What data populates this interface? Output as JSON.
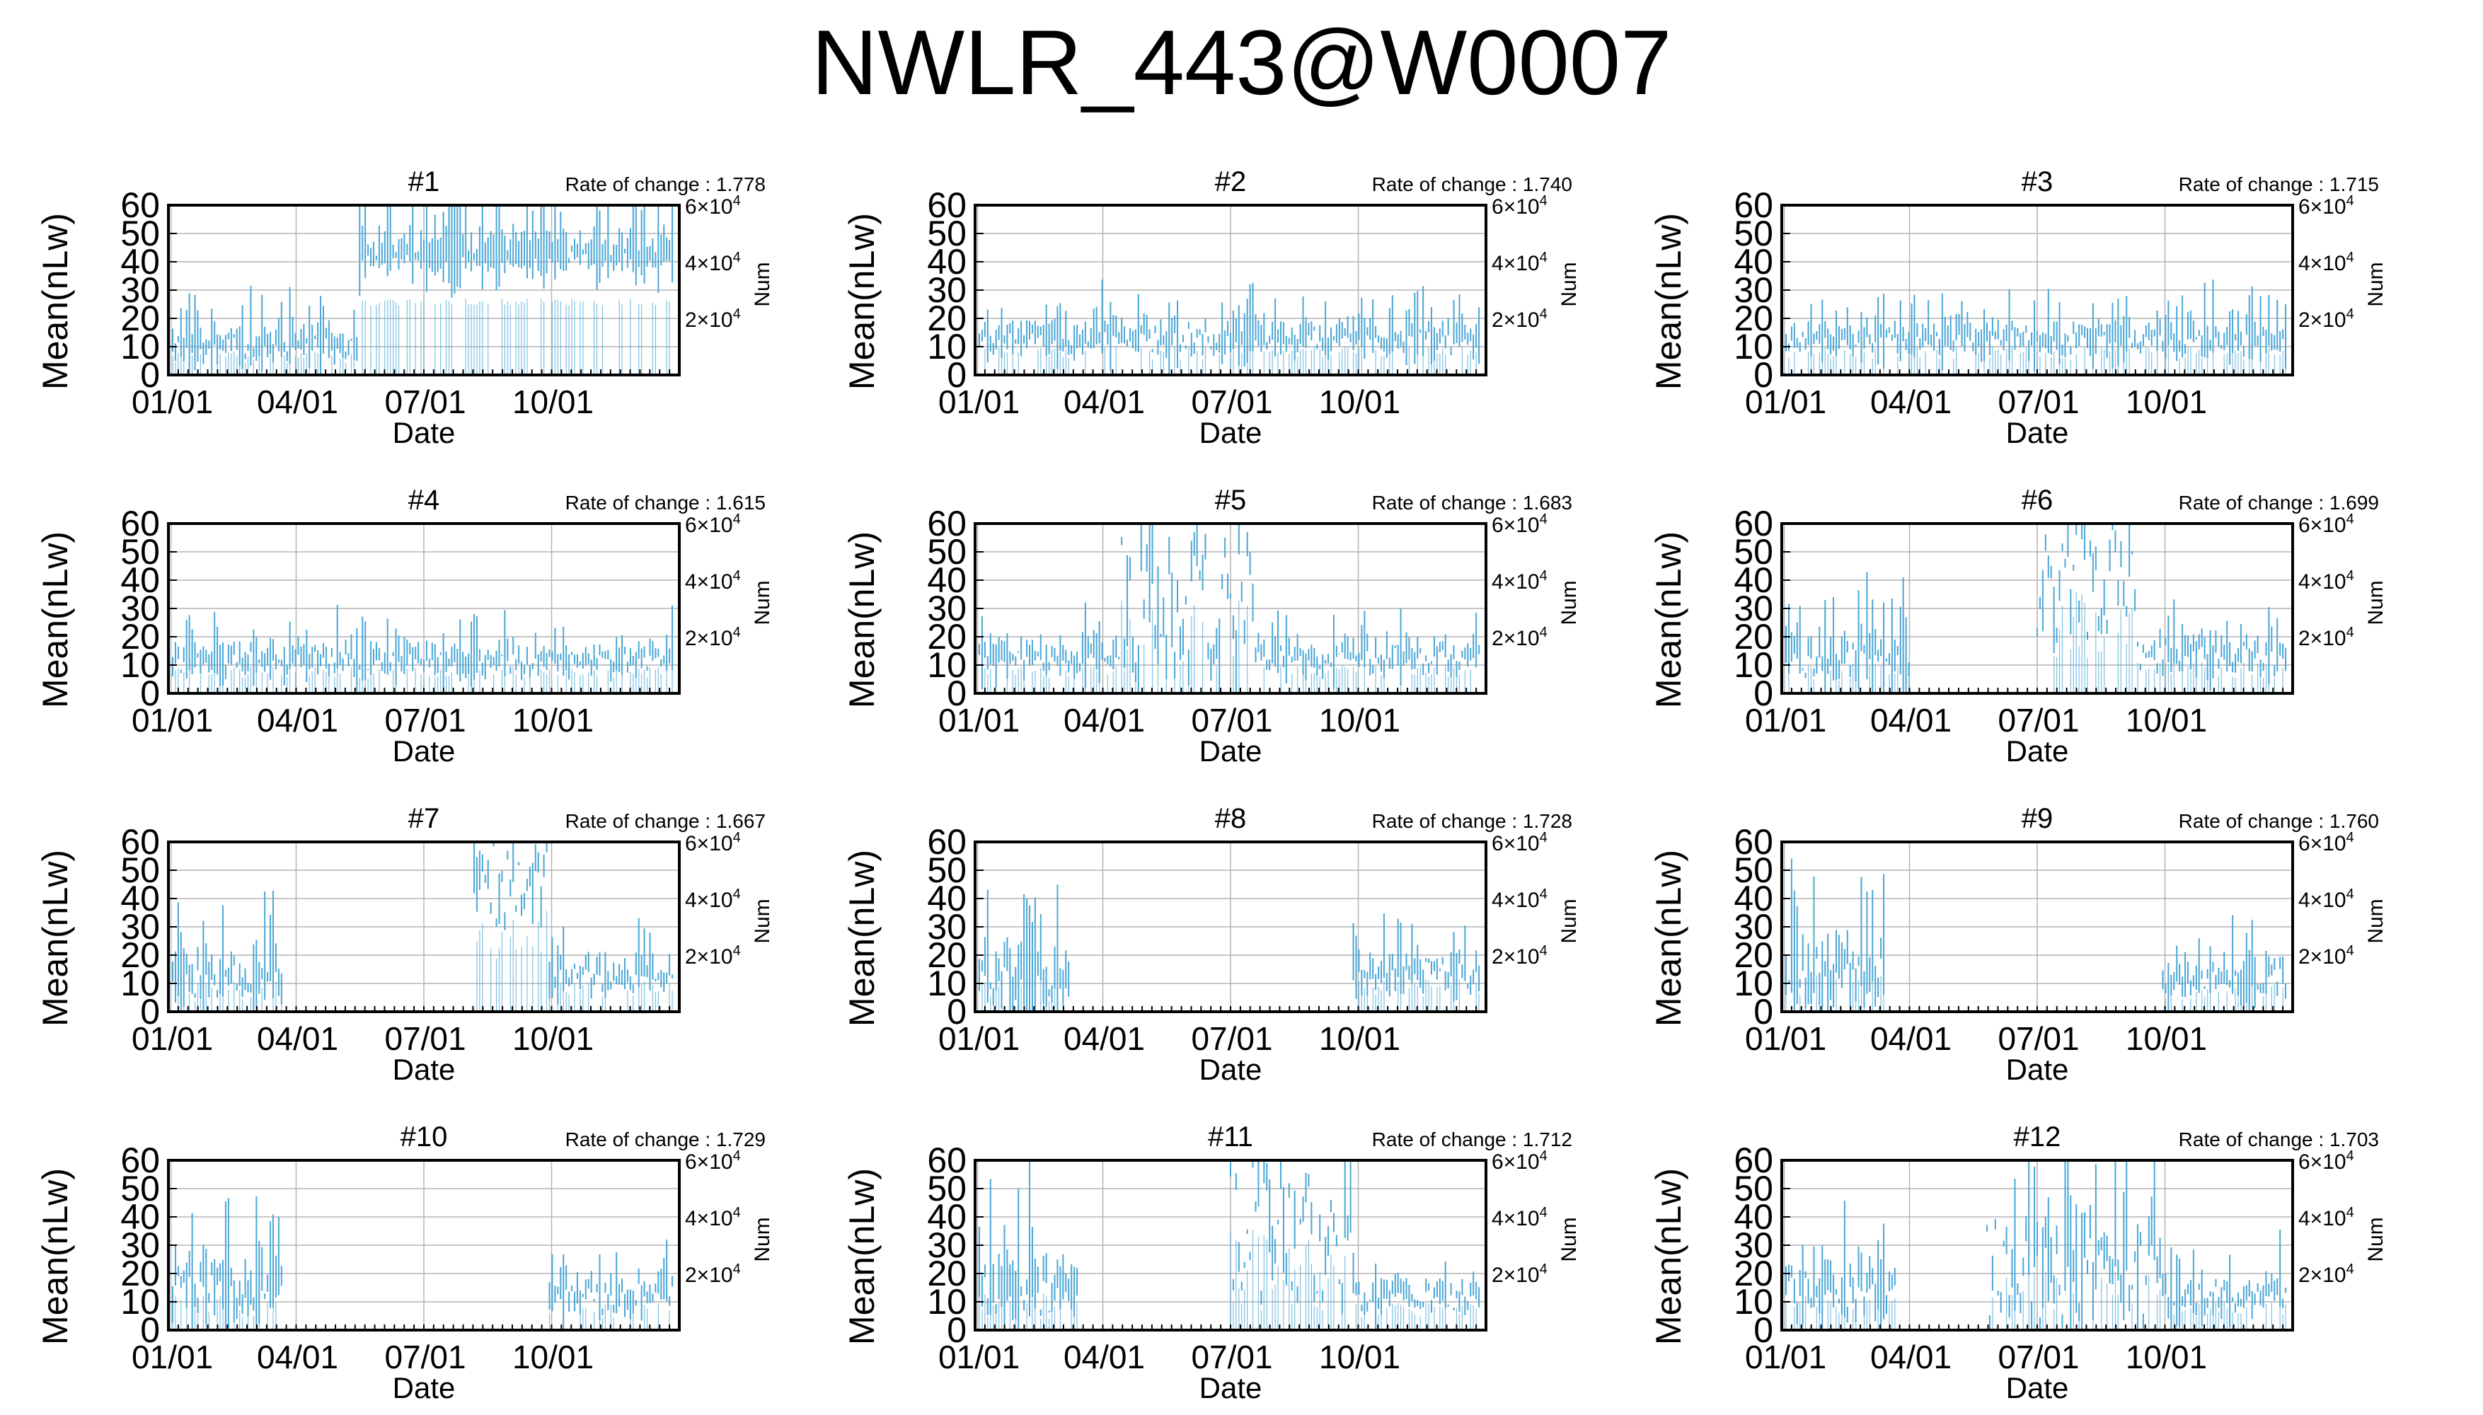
{
  "title": "NWLR_443@W0007",
  "axes": {
    "ylabel": "Mean(nLw)",
    "xlabel": "Date",
    "y2label": "Num",
    "yticks": [
      "0",
      "10",
      "20",
      "30",
      "40",
      "50",
      "60"
    ],
    "xticks": [
      "01/01",
      "04/01",
      "07/01",
      "10/01"
    ],
    "y2ticks": [
      {
        "mant": "2",
        "exp": "4"
      },
      {
        "mant": "4",
        "exp": "4"
      },
      {
        "mant": "6",
        "exp": "4"
      }
    ],
    "rate_prefix": "Rate of change : "
  },
  "colors": {
    "series": "#4aa6d6",
    "grid": "#b4b4b4",
    "frame": "#000000"
  },
  "chart_data": [
    {
      "type": "bar",
      "title": "#1",
      "rate": "1.778",
      "ylim": [
        0,
        60
      ],
      "segments": [
        {
          "start": 0,
          "end": 0.37,
          "base": 11,
          "var": 4,
          "amp": 20
        },
        {
          "start": 0.37,
          "end": 1.0,
          "base": 43,
          "var": 2,
          "amp": 32
        }
      ]
    },
    {
      "type": "bar",
      "title": "#2",
      "rate": "1.740",
      "ylim": [
        0,
        60
      ],
      "segments": [
        {
          "start": 0,
          "end": 1.0,
          "base": 13,
          "var": 4,
          "amp": 18
        }
      ]
    },
    {
      "type": "bar",
      "title": "#3",
      "rate": "1.715",
      "ylim": [
        0,
        60
      ],
      "segments": [
        {
          "start": 0,
          "end": 1.0,
          "base": 13,
          "var": 4,
          "amp": 18
        }
      ]
    },
    {
      "type": "bar",
      "title": "#4",
      "rate": "1.615",
      "ylim": [
        0,
        60
      ],
      "segments": [
        {
          "start": 0,
          "end": 1.0,
          "base": 12,
          "var": 4,
          "amp": 16
        }
      ]
    },
    {
      "type": "bar",
      "title": "#5",
      "rate": "1.683",
      "ylim": [
        0,
        60
      ],
      "segments": [
        {
          "start": 0,
          "end": 0.28,
          "base": 12,
          "var": 4,
          "amp": 22
        },
        {
          "start": 0.28,
          "end": 0.55,
          "base": 30,
          "var": 25,
          "amp": 30
        },
        {
          "start": 0.55,
          "end": 1.0,
          "base": 13,
          "var": 4,
          "amp": 18
        }
      ]
    },
    {
      "type": "bar",
      "title": "#6",
      "rate": "1.699",
      "ylim": [
        0,
        60
      ],
      "segments": [
        {
          "start": 0,
          "end": 0.25,
          "base": 12,
          "var": 6,
          "amp": 28
        },
        {
          "start": 0.5,
          "end": 0.7,
          "base": 40,
          "var": 20,
          "amp": 20
        },
        {
          "start": 0.68,
          "end": 1.0,
          "base": 14,
          "var": 5,
          "amp": 18
        }
      ]
    },
    {
      "type": "bar",
      "title": "#7",
      "rate": "1.667",
      "ylim": [
        0,
        60
      ],
      "segments": [
        {
          "start": 0,
          "end": 0.22,
          "base": 12,
          "var": 6,
          "amp": 30
        },
        {
          "start": 0.6,
          "end": 0.75,
          "base": 45,
          "var": 15,
          "amp": 15
        },
        {
          "start": 0.75,
          "end": 1.0,
          "base": 13,
          "var": 5,
          "amp": 16
        }
      ]
    },
    {
      "type": "bar",
      "title": "#8",
      "rate": "1.728",
      "ylim": [
        0,
        60
      ],
      "segments": [
        {
          "start": 0,
          "end": 0.18,
          "base": 12,
          "var": 7,
          "amp": 35
        },
        {
          "start": 0.74,
          "end": 1.0,
          "base": 14,
          "var": 5,
          "amp": 20
        }
      ]
    },
    {
      "type": "bar",
      "title": "#9",
      "rate": "1.760",
      "ylim": [
        0,
        60
      ],
      "segments": [
        {
          "start": 0,
          "end": 0.2,
          "base": 14,
          "var": 8,
          "amp": 35
        },
        {
          "start": 0.75,
          "end": 1.0,
          "base": 12,
          "var": 5,
          "amp": 18
        }
      ]
    },
    {
      "type": "bar",
      "title": "#10",
      "rate": "1.729",
      "ylim": [
        0,
        60
      ],
      "segments": [
        {
          "start": 0,
          "end": 0.22,
          "base": 15,
          "var": 8,
          "amp": 40
        },
        {
          "start": 0.75,
          "end": 1.0,
          "base": 13,
          "var": 6,
          "amp": 18
        }
      ]
    },
    {
      "type": "bar",
      "title": "#11",
      "rate": "1.712",
      "ylim": [
        0,
        60
      ],
      "segments": [
        {
          "start": 0,
          "end": 0.2,
          "base": 14,
          "var": 8,
          "amp": 40
        },
        {
          "start": 0.5,
          "end": 0.75,
          "base": 35,
          "var": 25,
          "amp": 25
        },
        {
          "start": 0.75,
          "end": 1.0,
          "base": 12,
          "var": 5,
          "amp": 16
        }
      ]
    },
    {
      "type": "bar",
      "title": "#12",
      "rate": "1.703",
      "ylim": [
        0,
        60
      ],
      "segments": [
        {
          "start": 0,
          "end": 0.22,
          "base": 13,
          "var": 8,
          "amp": 30
        },
        {
          "start": 0.4,
          "end": 0.75,
          "base": 20,
          "var": 18,
          "amp": 35
        },
        {
          "start": 0.75,
          "end": 1.0,
          "base": 12,
          "var": 5,
          "amp": 20
        }
      ]
    }
  ]
}
